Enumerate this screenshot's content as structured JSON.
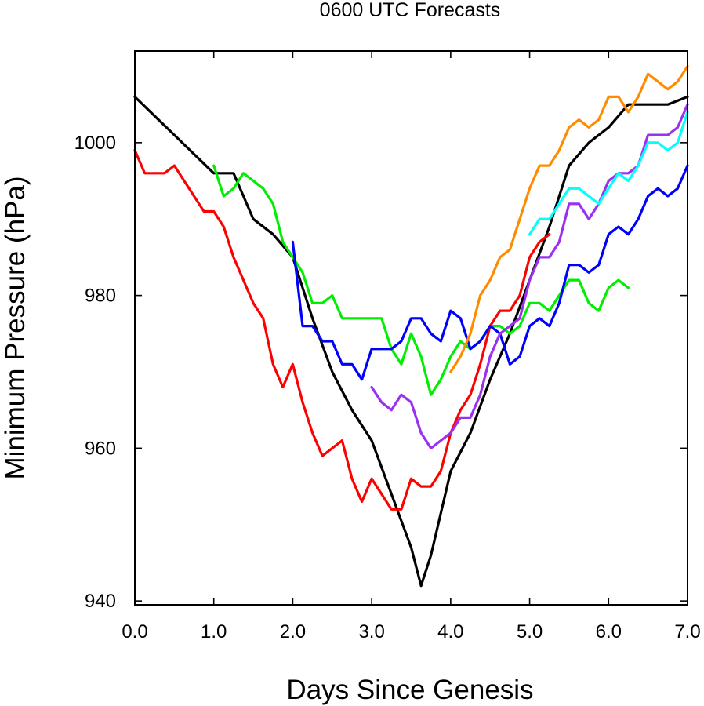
{
  "chart_data": {
    "type": "line",
    "title": "0600 UTC Forecasts",
    "xlabel": "Days Since Genesis",
    "ylabel": "Minimum Pressure (hPa)",
    "xlim": [
      0,
      7
    ],
    "ylim": [
      939.5,
      1012
    ],
    "x_ticks": [
      0,
      1,
      2,
      3,
      4,
      5,
      6,
      7
    ],
    "x_tick_labels": [
      "0.0",
      "1.0",
      "2.0",
      "3.0",
      "4.0",
      "5.0",
      "6.0",
      "7.0"
    ],
    "y_ticks": [
      940,
      960,
      980,
      1000
    ],
    "y_tick_labels": [
      "940",
      "960",
      "980",
      "1000"
    ],
    "grid": false,
    "series": [
      {
        "color": "#000000",
        "x": [
          0,
          0.25,
          0.5,
          0.75,
          1.0,
          1.25,
          1.5,
          1.75,
          2.0,
          2.25,
          2.5,
          2.75,
          3.0,
          3.25,
          3.5,
          3.625,
          3.75,
          4.0,
          4.25,
          4.5,
          4.75,
          5.0,
          5.25,
          5.5,
          5.75,
          6.0,
          6.25,
          6.5,
          6.75,
          7.0
        ],
        "y": [
          1006,
          1003.5,
          1001,
          998.5,
          996,
          996,
          990,
          988,
          985,
          977,
          970,
          965,
          961,
          954,
          947,
          942,
          946,
          957,
          962,
          969,
          975,
          982,
          989,
          997,
          1000,
          1002,
          1005,
          1005,
          1005,
          1006
        ]
      },
      {
        "color": "#ff0000",
        "x": [
          0,
          0.125,
          0.25,
          0.375,
          0.5,
          0.625,
          0.75,
          0.875,
          1.0,
          1.125,
          1.25,
          1.375,
          1.5,
          1.625,
          1.75,
          1.875,
          2.0,
          2.125,
          2.25,
          2.375,
          2.5,
          2.625,
          2.75,
          2.875,
          3.0,
          3.125,
          3.25,
          3.375,
          3.5,
          3.625,
          3.75,
          3.875,
          4.0,
          4.125,
          4.25,
          4.375,
          4.5,
          4.625,
          4.75,
          4.875,
          5.0,
          5.125,
          5.25
        ],
        "y": [
          999,
          996,
          996,
          996,
          997,
          995,
          993,
          991,
          991,
          989,
          985,
          982,
          979,
          977,
          971,
          968,
          971,
          966,
          962,
          959,
          960,
          961,
          956,
          953,
          956,
          954,
          952,
          952,
          956,
          955,
          955,
          957,
          962,
          965,
          967,
          971,
          976,
          978,
          978,
          980,
          985,
          987,
          988
        ]
      },
      {
        "color": "#00ee00",
        "x": [
          1.0,
          1.125,
          1.25,
          1.375,
          1.5,
          1.625,
          1.75,
          1.875,
          2.0,
          2.125,
          2.25,
          2.375,
          2.5,
          2.625,
          2.75,
          2.875,
          3.0,
          3.125,
          3.25,
          3.375,
          3.5,
          3.625,
          3.75,
          3.875,
          4.0,
          4.125,
          4.25,
          4.375,
          4.5,
          4.625,
          4.75,
          4.875,
          5.0,
          5.125,
          5.25,
          5.375,
          5.5,
          5.625,
          5.75,
          5.875,
          6.0,
          6.125,
          6.25
        ],
        "y": [
          997,
          993,
          994,
          996,
          995,
          994,
          992,
          987,
          985,
          983,
          979,
          979,
          980,
          977,
          977,
          977,
          977,
          977,
          973,
          971,
          975,
          972,
          967,
          969,
          972,
          974,
          973,
          974,
          976,
          976,
          975,
          976,
          979,
          979,
          978,
          980,
          982,
          982,
          979,
          978,
          981,
          982,
          981
        ]
      },
      {
        "color": "#0000ff",
        "x": [
          2.0,
          2.125,
          2.25,
          2.375,
          2.5,
          2.625,
          2.75,
          2.875,
          3.0,
          3.125,
          3.25,
          3.375,
          3.5,
          3.625,
          3.75,
          3.875,
          4.0,
          4.125,
          4.25,
          4.375,
          4.5,
          4.625,
          4.75,
          4.875,
          5.0,
          5.125,
          5.25,
          5.375,
          5.5,
          5.625,
          5.75,
          5.875,
          6.0,
          6.125,
          6.25,
          6.375,
          6.5,
          6.625,
          6.75,
          6.875,
          7.0
        ],
        "y": [
          987,
          976,
          976,
          974,
          974,
          971,
          971,
          969,
          973,
          973,
          973,
          974,
          977,
          977,
          975,
          974,
          978,
          977,
          973,
          974,
          976,
          975,
          971,
          972,
          976,
          977,
          976,
          979,
          984,
          984,
          983,
          984,
          988,
          989,
          988,
          990,
          993,
          994,
          993,
          994,
          997
        ]
      },
      {
        "color": "#9a30f0",
        "x": [
          3.0,
          3.125,
          3.25,
          3.375,
          3.5,
          3.625,
          3.75,
          3.875,
          4.0,
          4.125,
          4.25,
          4.375,
          4.5,
          4.625,
          4.75,
          4.875,
          5.0,
          5.125,
          5.25,
          5.375,
          5.5,
          5.625,
          5.75,
          5.875,
          6.0,
          6.125,
          6.25,
          6.375,
          6.5,
          6.625,
          6.75,
          6.875,
          7.0
        ],
        "y": [
          968,
          966,
          965,
          967,
          966,
          962,
          960,
          961,
          962,
          964,
          964,
          967,
          972,
          975,
          976,
          977,
          982,
          985,
          985,
          987,
          992,
          992,
          990,
          992,
          995,
          996,
          996,
          997,
          1001,
          1001,
          1001,
          1002,
          1005
        ]
      },
      {
        "color": "#ff8c00",
        "x": [
          4.0,
          4.125,
          4.25,
          4.375,
          4.5,
          4.625,
          4.75,
          4.875,
          5.0,
          5.125,
          5.25,
          5.375,
          5.5,
          5.625,
          5.75,
          5.875,
          6.0,
          6.125,
          6.25,
          6.375,
          6.5,
          6.625,
          6.75,
          6.875,
          7.0
        ],
        "y": [
          970,
          972,
          975,
          980,
          982,
          985,
          986,
          990,
          994,
          997,
          997,
          999,
          1002,
          1003,
          1002,
          1003,
          1006,
          1006,
          1004,
          1006,
          1009,
          1008,
          1007,
          1008,
          1010
        ]
      },
      {
        "color": "#00ffff",
        "x": [
          5.0,
          5.125,
          5.25,
          5.375,
          5.5,
          5.625,
          5.75,
          5.875,
          6.0,
          6.125,
          6.25,
          6.375,
          6.5,
          6.625,
          6.75,
          6.875,
          7.0
        ],
        "y": [
          988,
          990,
          990,
          992,
          994,
          994,
          993,
          992,
          994,
          996,
          995,
          997,
          1000,
          1000,
          999,
          1000,
          1004
        ]
      }
    ]
  }
}
